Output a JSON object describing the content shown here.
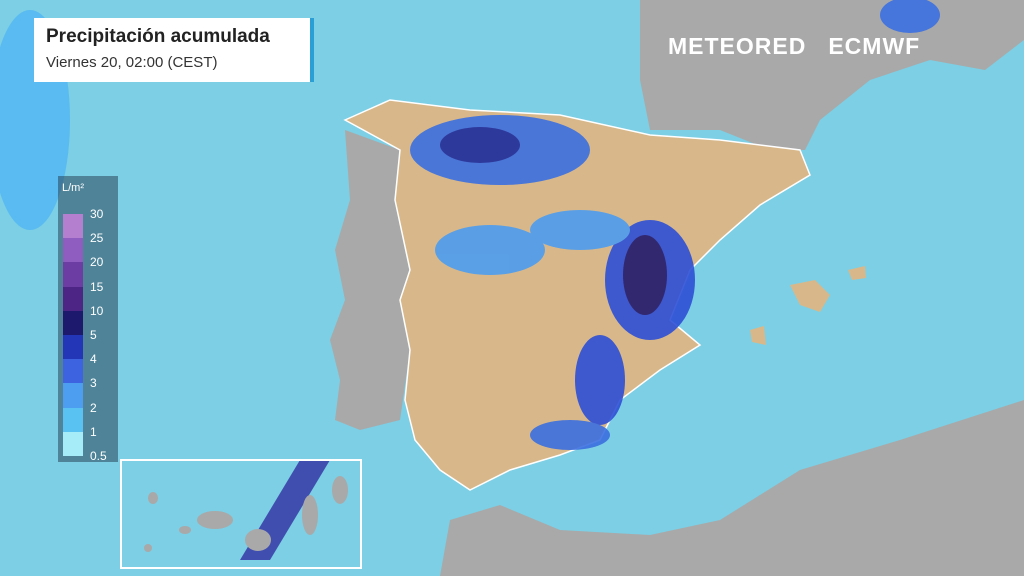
{
  "header": {
    "title": "Precipitación acumulada",
    "subtitle": "Viernes 20, 02:00 (CEST)"
  },
  "brands": [
    "METEORED",
    "ECMWF"
  ],
  "legend": {
    "unit": "L/m²",
    "labels": [
      30,
      25,
      20,
      15,
      10,
      5,
      4,
      3,
      2,
      1,
      0.5
    ],
    "colors": [
      "#b57fd0",
      "#8f5cbf",
      "#6c3ea3",
      "#4c2585",
      "#1d1a6e",
      "#2436b8",
      "#3d63e0",
      "#4d9df0",
      "#59c2f3",
      "#a5ecf8"
    ]
  }
}
